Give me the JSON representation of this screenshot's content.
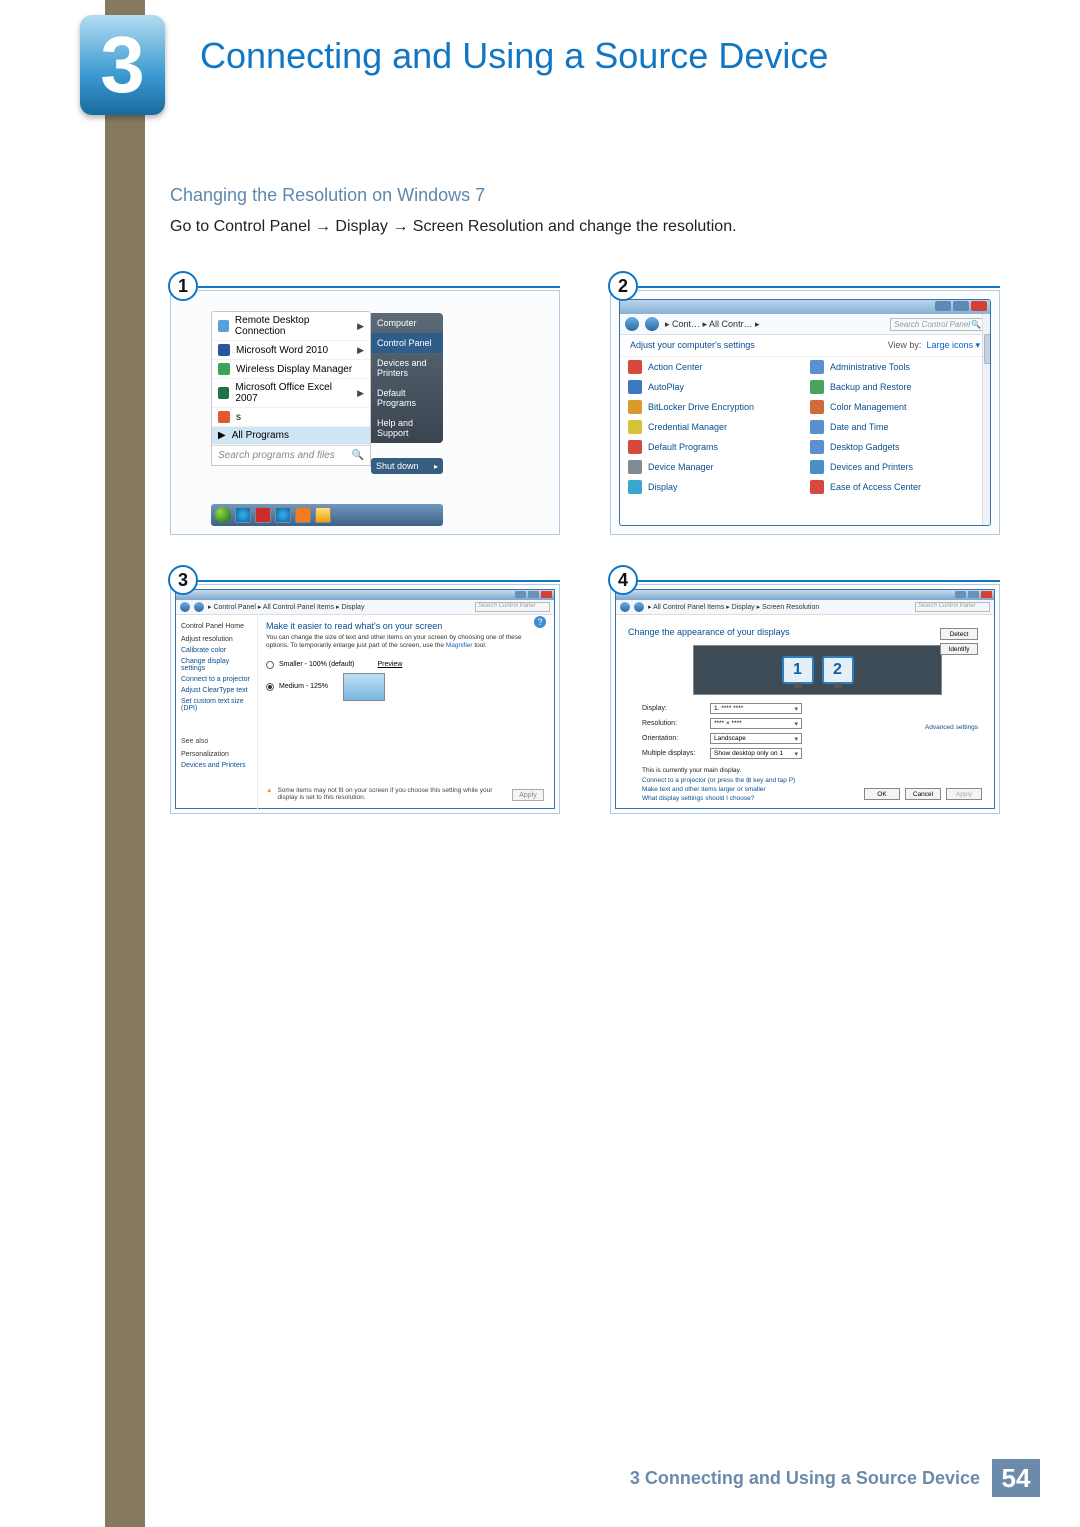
{
  "chapter": {
    "number": "3",
    "title": "Connecting and Using a Source Device"
  },
  "section": {
    "heading": "Changing the Resolution on Windows 7",
    "instruction": "Go to Control Panel → Display → Screen Resolution and change the resolution."
  },
  "steps": {
    "s1": "1",
    "s2": "2",
    "s3": "3",
    "s4": "4"
  },
  "startmenu": {
    "items": [
      {
        "label": "Remote Desktop Connection",
        "arrow": true,
        "icon_bg": "#5aa0d8"
      },
      {
        "label": "Microsoft Word 2010",
        "arrow": true,
        "icon_bg": "#2a579b"
      },
      {
        "label": "Wireless Display Manager",
        "arrow": false,
        "icon_bg": "#3aa655"
      },
      {
        "label": "Microsoft Office Excel 2007",
        "arrow": true,
        "icon_bg": "#1f7246"
      },
      {
        "label": "s",
        "arrow": false,
        "icon_bg": "#e05a2b"
      },
      {
        "label": "All Programs",
        "arrow": false,
        "icon_bg": "#4cae4f",
        "selected": true,
        "pre": "▶"
      }
    ],
    "search_placeholder": "Search programs and files",
    "search_icon": "🔍",
    "right": [
      "Computer",
      "Control Panel",
      "Devices and Printers",
      "Default Programs",
      "Help and Support"
    ],
    "right_selected": 1,
    "shutdown": "Shut down"
  },
  "controlpanel": {
    "crumb": "▸ Cont… ▸ All Contr… ▸",
    "search_placeholder": "Search Control Panel",
    "settings_label": "Adjust your computer's settings",
    "view_label": "View by:",
    "view_value": "Large icons ▾",
    "items": [
      {
        "label": "Action Center",
        "color": "#d7493e"
      },
      {
        "label": "Administrative Tools",
        "color": "#5a8fd0"
      },
      {
        "label": "AutoPlay",
        "color": "#3d76c2"
      },
      {
        "label": "Backup and Restore",
        "color": "#4aa35a"
      },
      {
        "label": "BitLocker Drive Encryption",
        "color": "#d89a2c"
      },
      {
        "label": "Color Management",
        "color": "#d06a3a"
      },
      {
        "label": "Credential Manager",
        "color": "#d8c23a"
      },
      {
        "label": "Date and Time",
        "color": "#5a8fd0"
      },
      {
        "label": "Default Programs",
        "color": "#d7493e"
      },
      {
        "label": "Desktop Gadgets",
        "color": "#5a8fd0"
      },
      {
        "label": "Device Manager",
        "color": "#808a94"
      },
      {
        "label": "Devices and Printers",
        "color": "#4a8fc7"
      },
      {
        "label": "Display",
        "color": "#3aa6d0"
      },
      {
        "label": "Ease of Access Center",
        "color": "#d7493e"
      }
    ]
  },
  "display": {
    "crumb": "▸ Control Panel ▸ All Control Panel Items ▸ Display",
    "search_placeholder": "Search Control Panel",
    "side": {
      "home": "Control Panel Home",
      "links": [
        "Adjust resolution",
        "Calibrate color",
        "Change display settings",
        "Connect to a projector",
        "Adjust ClearType text",
        "Set custom text size (DPI)"
      ],
      "seealso": "See also",
      "seealso_items": [
        "Personalization",
        "Devices and Printers"
      ]
    },
    "heading": "Make it easier to read what's on your screen",
    "para_pre": "You can change the size of text and other items on your screen by choosing one of these options. To temporarily enlarge just part of the screen, use the ",
    "para_link": "Magnifier",
    "para_post": " tool.",
    "opt1": "Smaller - 100% (default)",
    "opt_preview": "Preview",
    "opt2": "Medium - 125%",
    "warning": "Some items may not fit on your screen if you choose this setting while your display is set to this resolution.",
    "apply": "Apply"
  },
  "screenres": {
    "crumb": "▸ All Control Panel Items ▸ Display ▸ Screen Resolution",
    "search_placeholder": "Search Control Panel",
    "heading": "Change the appearance of your displays",
    "mon1": "1",
    "mon2": "2",
    "detect": "Detect",
    "identify": "Identify",
    "rows": {
      "display": {
        "label": "Display:",
        "value": "1. ****  ****"
      },
      "resolution": {
        "label": "Resolution:",
        "value": "****  × ****"
      },
      "orientation": {
        "label": "Orientation:",
        "value": "Landscape"
      },
      "multiple": {
        "label": "Multiple displays:",
        "value": "Show desktop only on 1"
      }
    },
    "note": "This is currently your main display.",
    "advanced": "Advanced settings",
    "links": [
      "Connect to a projector (or press the ⊞ key and tap P)",
      "Make text and other items larger or smaller",
      "What display settings should I choose?"
    ],
    "ok": "OK",
    "cancel": "Cancel",
    "apply": "Apply"
  },
  "footer": {
    "chapter_ref": "3 Connecting and Using a Source Device",
    "page": "54"
  }
}
